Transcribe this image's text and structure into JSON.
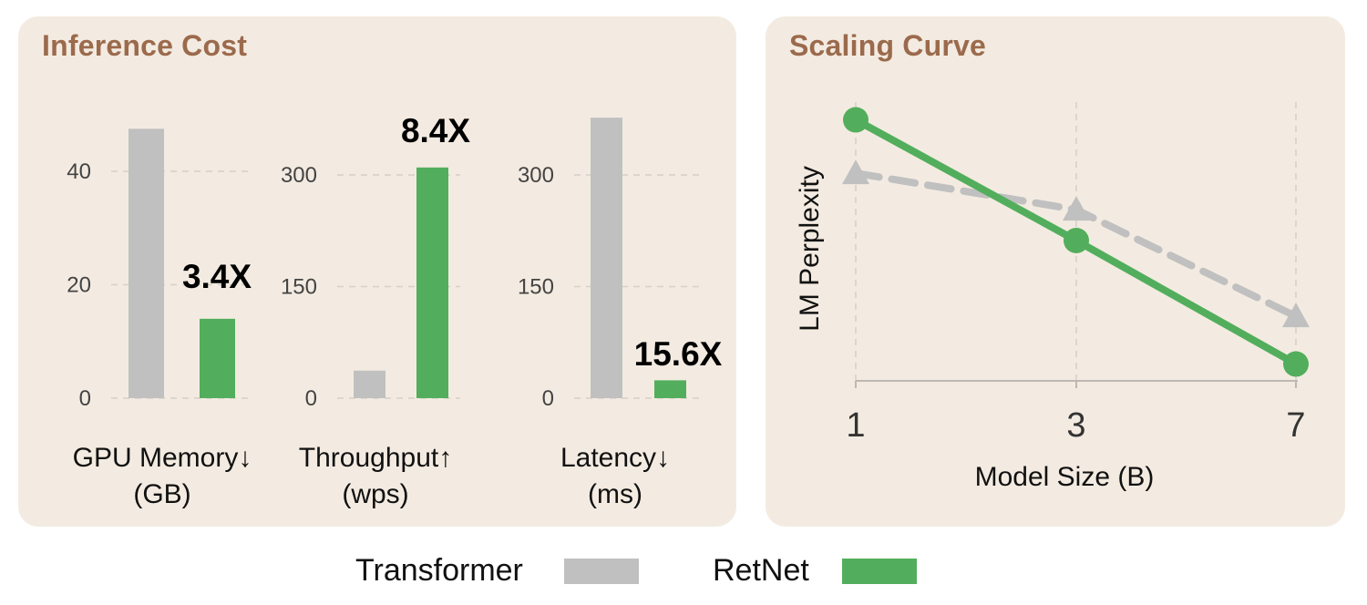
{
  "colors": {
    "transformer": "#c0c0c0",
    "retnet": "#52ae5c",
    "panel_bg": "#f3ebe1",
    "title": "#9b6a4c"
  },
  "inference_cost": {
    "title": "Inference Cost"
  },
  "scaling_curve": {
    "title": "Scaling Curve"
  },
  "legend": {
    "items": [
      {
        "label": "Transformer",
        "color": "#c0c0c0"
      },
      {
        "label": "RetNet",
        "color": "#52ae5c"
      }
    ]
  },
  "chart_data": [
    {
      "type": "bar",
      "id": "gpu-memory",
      "xlabel_line1": "GPU Memory↓",
      "xlabel_line2": "(GB)",
      "categories": [
        "Transformer",
        "RetNet"
      ],
      "values": [
        47.5,
        14
      ],
      "ylim": [
        0,
        50
      ],
      "yticks": [
        0,
        20,
        40
      ],
      "annotation": "3.4X"
    },
    {
      "type": "bar",
      "id": "throughput",
      "xlabel_line1": "Throughput↑",
      "xlabel_line2": "(wps)",
      "categories": [
        "Transformer",
        "RetNet"
      ],
      "values": [
        37,
        310
      ],
      "ylim": [
        0,
        340
      ],
      "yticks": [
        0,
        150,
        300
      ],
      "annotation": "8.4X"
    },
    {
      "type": "bar",
      "id": "latency",
      "xlabel_line1": "Latency↓",
      "xlabel_line2": "(ms)",
      "categories": [
        "Transformer",
        "RetNet"
      ],
      "values": [
        377,
        24
      ],
      "ylim": [
        0,
        380
      ],
      "yticks": [
        0,
        150,
        300
      ],
      "annotation": "15.6X"
    },
    {
      "type": "line",
      "id": "scaling",
      "title": "Scaling Curve",
      "xlabel": "Model Size (B)",
      "ylabel": "LM Perplexity",
      "categories": [
        "1",
        "3",
        "7"
      ],
      "ylim": [
        0,
        10
      ],
      "series": [
        {
          "name": "Transformer",
          "values": [
            7.4,
            6.1,
            2.3
          ],
          "style": "dashed",
          "marker": "triangle"
        },
        {
          "name": "RetNet",
          "values": [
            9.3,
            5.0,
            0.6
          ],
          "style": "solid",
          "marker": "circle"
        }
      ]
    }
  ]
}
